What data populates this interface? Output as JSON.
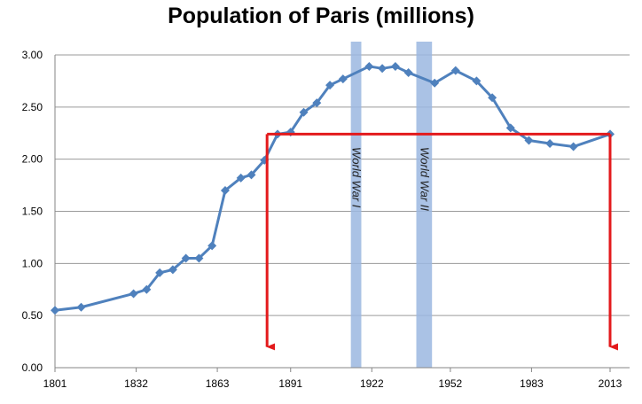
{
  "chart_data": {
    "type": "line",
    "title": "Population of Paris (millions)",
    "xlabel": "",
    "ylabel": "",
    "xlim": [
      1801,
      2013
    ],
    "ylim": [
      0,
      3
    ],
    "x_ticks": [
      "1801",
      "1832",
      "1863",
      "1891",
      "1922",
      "1952",
      "1983",
      "2013"
    ],
    "y_ticks": [
      "0.00",
      "0.50",
      "1.00",
      "1.50",
      "2.00",
      "2.50",
      "3.00"
    ],
    "grid": "horizontal",
    "series": [
      {
        "color": "#4F81BD",
        "marker": "diamond",
        "points": [
          [
            1801,
            0.55
          ],
          [
            1811,
            0.58
          ],
          [
            1831,
            0.71
          ],
          [
            1836,
            0.75
          ],
          [
            1841,
            0.91
          ],
          [
            1846,
            0.94
          ],
          [
            1851,
            1.05
          ],
          [
            1856,
            1.05
          ],
          [
            1861,
            1.17
          ],
          [
            1866,
            1.7
          ],
          [
            1872,
            1.82
          ],
          [
            1876,
            1.85
          ],
          [
            1881,
            1.99
          ],
          [
            1886,
            2.24
          ],
          [
            1891,
            2.26
          ],
          [
            1896,
            2.45
          ],
          [
            1901,
            2.54
          ],
          [
            1906,
            2.71
          ],
          [
            1911,
            2.77
          ],
          [
            1921,
            2.89
          ],
          [
            1926,
            2.87
          ],
          [
            1931,
            2.89
          ],
          [
            1936,
            2.83
          ],
          [
            1946,
            2.73
          ],
          [
            1954,
            2.85
          ],
          [
            1962,
            2.75
          ],
          [
            1968,
            2.59
          ],
          [
            1975,
            2.3
          ],
          [
            1982,
            2.18
          ],
          [
            1990,
            2.15
          ],
          [
            1999,
            2.12
          ],
          [
            2013,
            2.24
          ]
        ]
      }
    ],
    "bands": [
      {
        "label": "World War I",
        "x_start": 1914,
        "x_end": 1918,
        "color": "#9BB7E0"
      },
      {
        "label": "World War II",
        "x_start": 1939,
        "x_end": 1945,
        "color": "#9BB7E0"
      }
    ],
    "annotations": [
      {
        "type": "bracket-arrows",
        "color": "#E31A1C",
        "y": 2.24,
        "x_start": 1882,
        "x_end": 2013,
        "arrow_to_y": 0.2
      }
    ]
  }
}
